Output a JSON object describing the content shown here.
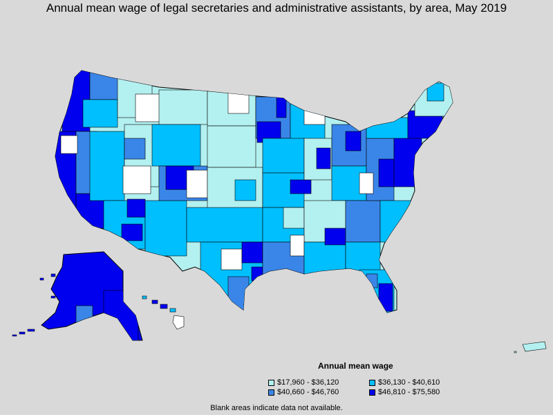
{
  "title": "Annual mean wage of legal secretaries and administrative assistants, by area, May 2019",
  "legend": {
    "title": "Annual mean wage",
    "items": [
      {
        "label": "$17,960 - $36,120",
        "color": "#b3f0f0"
      },
      {
        "label": "$36,130 - $40,610",
        "color": "#00bfff"
      },
      {
        "label": "$40,660 - $46,760",
        "color": "#3a86e8"
      },
      {
        "label": "$46,810 - $75,580",
        "color": "#0000ee"
      }
    ]
  },
  "note": "Blank areas indicate data not available.",
  "colors": {
    "background": "#d9d9d9",
    "no_data": "#ffffff",
    "border": "#000000"
  }
}
